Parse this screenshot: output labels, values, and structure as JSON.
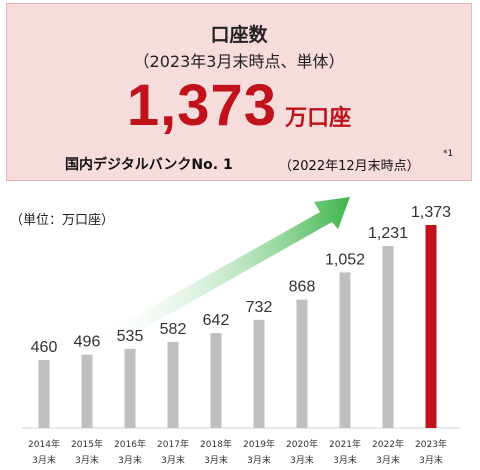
{
  "header": {
    "title": "口座数",
    "subtitle": "（2023年3月末時点、単体）",
    "big_value": "1,373",
    "big_unit": "万口座",
    "rank_text": "国内デジタルバンクNo. 1",
    "rank_date": "（2022年12月末時点）",
    "footnote_mark": "*1"
  },
  "unit_label": "（単位：万口座）",
  "colors": {
    "bar_default": "#bfbfbf",
    "bar_highlight": "#c0121b",
    "hero_bg": "#f7dcdc",
    "accent_red": "#c0121b",
    "arrow_start": "#ffffff",
    "arrow_end": "#3db54a"
  },
  "chart_data": {
    "type": "bar",
    "categories": [
      [
        "2014年",
        "3月末"
      ],
      [
        "2015年",
        "3月末"
      ],
      [
        "2016年",
        "3月末"
      ],
      [
        "2017年",
        "3月末"
      ],
      [
        "2018年",
        "3月末"
      ],
      [
        "2019年",
        "3月末"
      ],
      [
        "2020年",
        "3月末"
      ],
      [
        "2021年",
        "3月末"
      ],
      [
        "2022年",
        "3月末"
      ],
      [
        "2023年",
        "3月末"
      ]
    ],
    "values": [
      460,
      496,
      535,
      582,
      642,
      732,
      868,
      1052,
      1231,
      1373
    ],
    "value_labels": [
      "460",
      "496",
      "535",
      "582",
      "642",
      "732",
      "868",
      "1,052",
      "1,231",
      "1,373"
    ],
    "highlight_index": 9,
    "ylim": [
      0,
      1373
    ],
    "grid": false,
    "legend": "none",
    "annotation": "upward-trend-arrow"
  }
}
